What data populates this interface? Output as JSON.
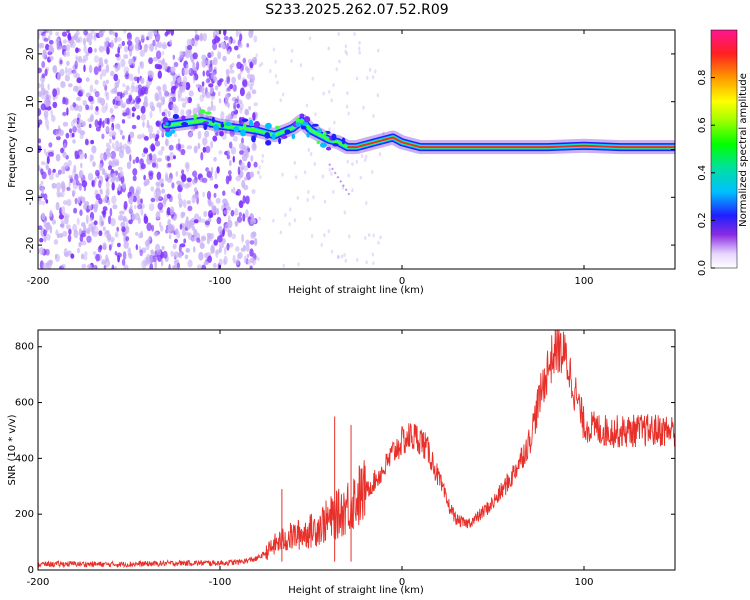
{
  "figure_title": "S233.2025.262.07.52.R09",
  "colors": {
    "snr_line": "#e8302a",
    "ridge": "#e8302a",
    "speckle": "#7a2cff",
    "speckle_light": "#c9b3f5"
  },
  "chart_data": [
    {
      "type": "heatmap",
      "title": "",
      "xlabel": "Height of straight line (km)",
      "ylabel": "Frequency (Hz)",
      "xlim": [
        -200,
        150
      ],
      "ylim": [
        -25,
        25
      ],
      "xticks": [
        -200,
        -100,
        0,
        100
      ],
      "xtick_labels": [
        "-200",
        "-100",
        "0",
        "100"
      ],
      "yticks": [
        -20,
        -10,
        0,
        10,
        20
      ],
      "ytick_labels": [
        "-20",
        "-10",
        "0",
        "10",
        "20"
      ],
      "grid": false,
      "noise_band_x_range": [
        -200,
        -80
      ],
      "ridge": {
        "description": "dominant frequency ridge",
        "x": [
          -130,
          -110,
          -100,
          -90,
          -80,
          -70,
          -60,
          -55,
          -50,
          -45,
          -40,
          -35,
          -30,
          -25,
          -20,
          -15,
          -10,
          -5,
          0,
          5,
          10,
          20,
          40,
          60,
          80,
          100,
          120,
          150
        ],
        "y": [
          5,
          6,
          5,
          4.5,
          4,
          3,
          4.5,
          6,
          4,
          3,
          2,
          1.5,
          0.5,
          0.5,
          1,
          1.5,
          2,
          2.5,
          1.5,
          1,
          0.5,
          0.5,
          0.5,
          0.5,
          0.5,
          0.8,
          0.5,
          0.5
        ]
      },
      "colorbar": {
        "label": "Normalized spectral amplitude",
        "range": [
          0.0,
          1.0
        ],
        "ticks": [
          0.0,
          0.2,
          0.4,
          0.6,
          0.8
        ],
        "tick_labels": [
          "0.0",
          "0.2",
          "0.4",
          "0.6",
          "0.8"
        ]
      }
    },
    {
      "type": "line",
      "title": "",
      "xlabel": "Height of straight line (km)",
      "ylabel": "SNR (10 * v/v)",
      "xlim": [
        -200,
        150
      ],
      "ylim": [
        0,
        860
      ],
      "xticks": [
        -200,
        -100,
        0,
        100
      ],
      "xtick_labels": [
        "-200",
        "-100",
        "0",
        "100"
      ],
      "yticks": [
        0,
        200,
        400,
        600,
        800
      ],
      "ytick_labels": [
        "0",
        "200",
        "400",
        "600",
        "800"
      ],
      "grid": false,
      "series": [
        {
          "name": "SNR",
          "x": [
            -200,
            -180,
            -160,
            -140,
            -120,
            -100,
            -90,
            -80,
            -75,
            -70,
            -65,
            -60,
            -55,
            -50,
            -45,
            -40,
            -35,
            -30,
            -25,
            -20,
            -15,
            -10,
            -5,
            0,
            5,
            10,
            15,
            20,
            25,
            30,
            35,
            40,
            50,
            60,
            70,
            75,
            80,
            85,
            90,
            95,
            100,
            110,
            120,
            130,
            140,
            150
          ],
          "y": [
            20,
            22,
            20,
            22,
            25,
            25,
            28,
            40,
            60,
            90,
            110,
            120,
            130,
            140,
            160,
            180,
            200,
            230,
            260,
            280,
            320,
            360,
            420,
            460,
            480,
            470,
            420,
            330,
            240,
            180,
            165,
            180,
            240,
            330,
            460,
            600,
            720,
            800,
            760,
            640,
            520,
            500,
            495,
            500,
            500,
            500
          ]
        }
      ],
      "annotations": [
        {
          "x": -66,
          "y": 290,
          "text": ""
        },
        {
          "x": -37,
          "y": 550,
          "text": ""
        },
        {
          "x": -28,
          "y": 520,
          "text": ""
        }
      ]
    }
  ]
}
